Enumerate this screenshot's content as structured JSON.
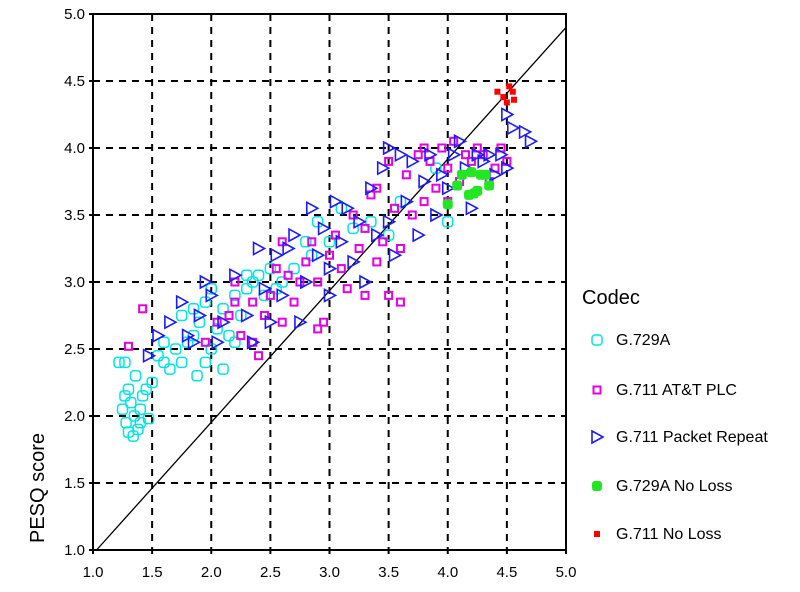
{
  "chart_data": {
    "type": "scatter",
    "title": "",
    "xlabel": "",
    "ylabel": "PESQ score",
    "xlim": [
      1.0,
      5.0
    ],
    "ylim": [
      1.0,
      5.0
    ],
    "xticks": [
      "1.0",
      "1.5",
      "2.0",
      "2.5",
      "3.0",
      "3.5",
      "4.0",
      "4.5",
      "5.0"
    ],
    "yticks": [
      "1.0",
      "1.5",
      "2.0",
      "2.5",
      "3.0",
      "3.5",
      "4.0",
      "4.5",
      "5.0"
    ],
    "grid": true,
    "reference_line": {
      "from": [
        1.03,
        1.0
      ],
      "to": [
        5.0,
        4.9
      ]
    },
    "legend": {
      "title": "Codec",
      "placement": "right"
    },
    "series": [
      {
        "name": "G.729A",
        "marker": "open-rounded-square",
        "color": "#00e5e5",
        "points": [
          [
            1.22,
            2.4
          ],
          [
            1.27,
            2.4
          ],
          [
            1.3,
            2.2
          ],
          [
            1.25,
            2.05
          ],
          [
            1.28,
            1.95
          ],
          [
            1.32,
            2.1
          ],
          [
            1.35,
            2.0
          ],
          [
            1.3,
            1.88
          ],
          [
            1.34,
            1.85
          ],
          [
            1.38,
            1.9
          ],
          [
            1.4,
            2.05
          ],
          [
            1.42,
            2.15
          ],
          [
            1.45,
            2.2
          ],
          [
            1.47,
            1.98
          ],
          [
            1.36,
            2.3
          ],
          [
            1.27,
            2.15
          ],
          [
            1.4,
            1.95
          ],
          [
            1.5,
            2.25
          ],
          [
            1.55,
            2.45
          ],
          [
            1.6,
            2.4
          ],
          [
            1.65,
            2.35
          ],
          [
            1.7,
            2.5
          ],
          [
            1.75,
            2.4
          ],
          [
            1.8,
            2.55
          ],
          [
            1.85,
            2.6
          ],
          [
            1.88,
            2.3
          ],
          [
            1.95,
            2.4
          ],
          [
            1.9,
            2.7
          ],
          [
            1.95,
            2.85
          ],
          [
            2.0,
            2.95
          ],
          [
            2.05,
            2.65
          ],
          [
            2.1,
            2.8
          ],
          [
            2.15,
            2.6
          ],
          [
            2.2,
            2.9
          ],
          [
            2.25,
            2.75
          ],
          [
            2.3,
            2.95
          ],
          [
            2.35,
            3.0
          ],
          [
            2.4,
            3.05
          ],
          [
            2.45,
            2.9
          ],
          [
            2.5,
            3.1
          ],
          [
            2.55,
            2.95
          ],
          [
            2.6,
            3.0
          ],
          [
            2.7,
            3.1
          ],
          [
            2.8,
            3.3
          ],
          [
            2.85,
            3.2
          ],
          [
            2.9,
            3.45
          ],
          [
            3.0,
            3.3
          ],
          [
            3.1,
            3.55
          ],
          [
            3.2,
            3.4
          ],
          [
            3.35,
            3.45
          ],
          [
            3.5,
            3.35
          ],
          [
            3.6,
            3.6
          ],
          [
            4.0,
            3.45
          ],
          [
            3.9,
            3.85
          ],
          [
            1.6,
            2.55
          ],
          [
            1.75,
            2.75
          ],
          [
            2.0,
            2.5
          ],
          [
            2.2,
            2.55
          ],
          [
            2.1,
            2.35
          ],
          [
            1.85,
            2.8
          ],
          [
            2.3,
            3.05
          ]
        ]
      },
      {
        "name": "G.711 AT&T PLC",
        "marker": "open-square",
        "color": "#e600e6",
        "points": [
          [
            1.3,
            2.52
          ],
          [
            1.42,
            2.8
          ],
          [
            1.95,
            2.55
          ],
          [
            2.05,
            2.7
          ],
          [
            2.15,
            2.75
          ],
          [
            2.2,
            2.85
          ],
          [
            2.25,
            2.6
          ],
          [
            2.35,
            2.55
          ],
          [
            2.4,
            2.45
          ],
          [
            2.45,
            2.75
          ],
          [
            2.5,
            2.9
          ],
          [
            2.55,
            3.1
          ],
          [
            2.6,
            2.7
          ],
          [
            2.65,
            3.05
          ],
          [
            2.7,
            2.85
          ],
          [
            2.75,
            3.0
          ],
          [
            2.8,
            3.15
          ],
          [
            2.85,
            3.3
          ],
          [
            2.9,
            3.0
          ],
          [
            2.95,
            2.7
          ],
          [
            3.0,
            3.2
          ],
          [
            3.05,
            3.35
          ],
          [
            3.1,
            3.1
          ],
          [
            3.15,
            2.95
          ],
          [
            3.2,
            3.5
          ],
          [
            3.25,
            3.25
          ],
          [
            3.3,
            3.4
          ],
          [
            3.35,
            3.65
          ],
          [
            3.4,
            3.15
          ],
          [
            3.45,
            3.3
          ],
          [
            3.5,
            2.9
          ],
          [
            3.55,
            3.55
          ],
          [
            3.6,
            3.25
          ],
          [
            3.65,
            3.8
          ],
          [
            3.7,
            3.5
          ],
          [
            3.75,
            3.95
          ],
          [
            3.8,
            3.6
          ],
          [
            3.85,
            3.9
          ],
          [
            3.9,
            3.7
          ],
          [
            3.95,
            4.0
          ],
          [
            4.0,
            3.85
          ],
          [
            4.05,
            4.05
          ],
          [
            4.1,
            3.75
          ],
          [
            4.15,
            3.95
          ],
          [
            4.2,
            3.9
          ],
          [
            4.25,
            4.0
          ],
          [
            4.3,
            3.95
          ],
          [
            4.35,
            3.75
          ],
          [
            4.4,
            3.85
          ],
          [
            4.45,
            4.0
          ],
          [
            4.5,
            3.9
          ],
          [
            3.5,
            3.9
          ],
          [
            3.3,
            2.9
          ],
          [
            2.2,
            3.0
          ],
          [
            2.9,
            2.65
          ],
          [
            3.6,
            2.85
          ],
          [
            2.35,
            2.85
          ],
          [
            2.6,
            3.3
          ],
          [
            3.4,
            3.7
          ],
          [
            4.0,
            3.6
          ],
          [
            3.8,
            4.0
          ]
        ]
      },
      {
        "name": "G.711 Packet Repeat",
        "marker": "open-triangle-right",
        "color": "#1a1aff",
        "points": [
          [
            1.47,
            2.45
          ],
          [
            1.55,
            2.6
          ],
          [
            1.65,
            2.7
          ],
          [
            1.75,
            2.85
          ],
          [
            1.8,
            2.6
          ],
          [
            1.85,
            2.55
          ],
          [
            1.9,
            2.75
          ],
          [
            2.0,
            2.9
          ],
          [
            2.05,
            2.55
          ],
          [
            2.1,
            2.7
          ],
          [
            2.2,
            3.05
          ],
          [
            2.3,
            2.75
          ],
          [
            2.35,
            2.55
          ],
          [
            2.4,
            3.25
          ],
          [
            2.45,
            2.95
          ],
          [
            2.55,
            3.2
          ],
          [
            2.6,
            2.9
          ],
          [
            2.65,
            3.25
          ],
          [
            2.7,
            3.35
          ],
          [
            2.75,
            2.7
          ],
          [
            2.8,
            3.0
          ],
          [
            2.85,
            3.55
          ],
          [
            2.9,
            3.2
          ],
          [
            2.95,
            3.4
          ],
          [
            3.0,
            3.1
          ],
          [
            3.05,
            3.6
          ],
          [
            3.1,
            3.3
          ],
          [
            3.15,
            3.55
          ],
          [
            3.2,
            3.15
          ],
          [
            3.25,
            3.45
          ],
          [
            3.3,
            3.0
          ],
          [
            3.35,
            3.7
          ],
          [
            3.4,
            3.35
          ],
          [
            3.45,
            3.85
          ],
          [
            3.5,
            3.45
          ],
          [
            3.55,
            3.2
          ],
          [
            3.6,
            3.95
          ],
          [
            3.65,
            3.6
          ],
          [
            3.7,
            3.9
          ],
          [
            3.75,
            3.35
          ],
          [
            3.8,
            3.75
          ],
          [
            3.85,
            3.95
          ],
          [
            3.9,
            3.5
          ],
          [
            3.95,
            3.8
          ],
          [
            4.05,
            3.95
          ],
          [
            4.1,
            4.05
          ],
          [
            4.15,
            3.85
          ],
          [
            4.2,
            3.55
          ],
          [
            4.25,
            3.95
          ],
          [
            4.3,
            3.9
          ],
          [
            4.35,
            3.95
          ],
          [
            4.4,
            3.8
          ],
          [
            4.45,
            3.95
          ],
          [
            4.5,
            3.85
          ],
          [
            4.55,
            4.15
          ],
          [
            4.65,
            4.12
          ],
          [
            4.7,
            4.05
          ],
          [
            4.5,
            4.25
          ],
          [
            3.0,
            2.9
          ],
          [
            2.5,
            2.7
          ],
          [
            1.95,
            3.0
          ],
          [
            3.5,
            4.0
          ],
          [
            4.0,
            3.7
          ]
        ]
      },
      {
        "name": "G.729A No Loss",
        "marker": "filled-rounded-square",
        "color": "#22e622",
        "points": [
          [
            4.0,
            3.58
          ],
          [
            4.08,
            3.72
          ],
          [
            4.12,
            3.8
          ],
          [
            4.18,
            3.65
          ],
          [
            4.2,
            3.82
          ],
          [
            4.25,
            3.68
          ],
          [
            4.28,
            3.8
          ],
          [
            4.32,
            3.8
          ],
          [
            4.35,
            3.72
          ],
          [
            4.22,
            3.66
          ]
        ]
      },
      {
        "name": "G.711 No Loss",
        "marker": "filled-square",
        "color": "#ff0000",
        "points": [
          [
            4.42,
            4.42
          ],
          [
            4.47,
            4.38
          ],
          [
            4.52,
            4.46
          ],
          [
            4.55,
            4.42
          ],
          [
            4.56,
            4.36
          ],
          [
            4.5,
            4.34
          ]
        ]
      }
    ]
  }
}
